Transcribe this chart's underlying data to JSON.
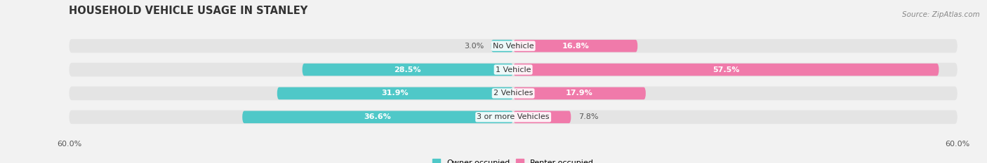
{
  "title": "HOUSEHOLD VEHICLE USAGE IN STANLEY",
  "source": "Source: ZipAtlas.com",
  "categories": [
    "No Vehicle",
    "1 Vehicle",
    "2 Vehicles",
    "3 or more Vehicles"
  ],
  "owner_values": [
    3.0,
    28.5,
    31.9,
    36.6
  ],
  "renter_values": [
    16.8,
    57.5,
    17.9,
    7.8
  ],
  "owner_color": "#4fc8c8",
  "renter_color": "#f07aaa",
  "owner_label": "Owner-occupied",
  "renter_label": "Renter-occupied",
  "axis_max": 60.0,
  "background_color": "#f2f2f2",
  "bar_background": "#e4e4e4",
  "title_fontsize": 10.5,
  "source_fontsize": 7.5,
  "value_fontsize": 8,
  "category_fontsize": 8,
  "axis_label_fontsize": 8,
  "white_threshold": 12
}
